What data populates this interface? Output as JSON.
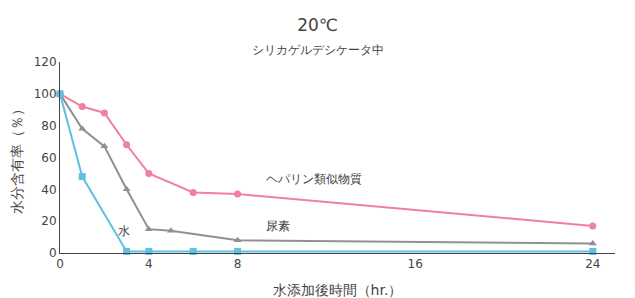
{
  "chart_data": {
    "type": "line",
    "title": "20℃",
    "subtitle": "シリカゲルデシケータ中",
    "x_label": "水添加後時間（hr.）",
    "y_label": "水分含有率（％）",
    "xlim": [
      0,
      25
    ],
    "ylim": [
      0,
      120
    ],
    "xticks": [
      0,
      4,
      8,
      16,
      24
    ],
    "yticks": [
      0,
      20,
      40,
      60,
      80,
      100,
      120
    ],
    "grid": false,
    "series": [
      {
        "name": "ヘパリン類似物質",
        "color": "#f080a0",
        "marker": "circle",
        "x": [
          0,
          1,
          2,
          3,
          4,
          6,
          8,
          24
        ],
        "values": [
          100,
          92,
          88,
          68,
          50,
          38,
          37,
          17
        ]
      },
      {
        "name": "尿素",
        "color": "#909090",
        "marker": "triangle-up",
        "x": [
          0,
          1,
          2,
          3,
          4,
          5,
          8,
          24
        ],
        "values": [
          100,
          78,
          67,
          40,
          15,
          14,
          8,
          6
        ]
      },
      {
        "name": "水",
        "color": "#60c0e0",
        "marker": "square",
        "x": [
          0,
          1,
          3,
          4,
          6,
          8,
          24
        ],
        "values": [
          100,
          48,
          1,
          1,
          1,
          1,
          1
        ]
      }
    ],
    "annotations": [
      {
        "text": "ヘパリン類似物質",
        "x": 9.2,
        "y": 41
      },
      {
        "text": "尿素",
        "x": 9.2,
        "y": 11
      },
      {
        "text": "水",
        "x": 2.5,
        "y": 8
      }
    ]
  }
}
